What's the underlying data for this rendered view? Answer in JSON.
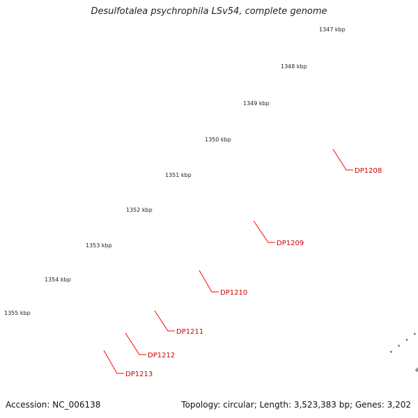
{
  "title": "Desulfotalea psychrophila LSv54, complete genome",
  "footer": {
    "accession_label": "Accession:",
    "accession": "NC_006138",
    "topology_label": "Topology:",
    "topology": "circular",
    "length_label": "Length:",
    "length": "3,523,383 bp",
    "genes_label": "Genes:",
    "genes": "3,202"
  },
  "scale_labels": [
    "1347 kbp",
    "1348 kbp",
    "1349 kbp",
    "1350 kbp",
    "1351 kbp",
    "1352 kbp",
    "1353 kbp",
    "1354 kbp",
    "1355 kbp"
  ],
  "gene_labels": [
    "DP1208",
    "DP1209",
    "DP1210",
    "DP1211",
    "DP1212",
    "DP1213"
  ],
  "colors": {
    "backbone": "#8a8a8a",
    "forward_gene": "#ff0000",
    "reverse_gene": "#ff0000",
    "rna_gene": "#bdbdbd",
    "orange_gene": "#ff9900",
    "blue_track": "#3d4f9e",
    "tick_dots": "#2e8b2e",
    "label_line": "#ff0000",
    "label_text": "#cc0000"
  }
}
